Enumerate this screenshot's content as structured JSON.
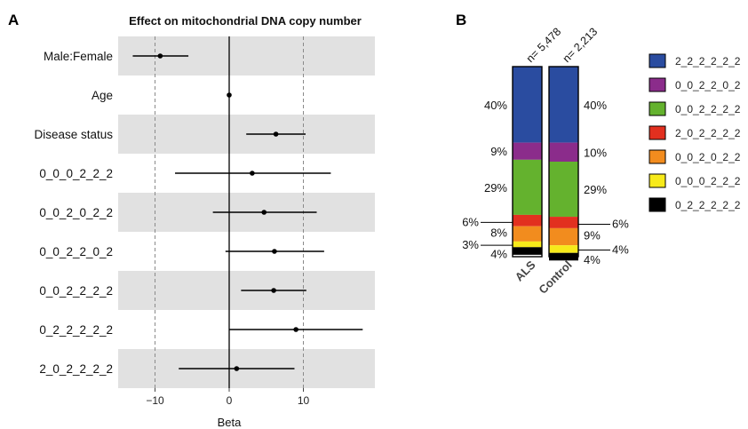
{
  "panel_a": {
    "letter": "A"
  },
  "panel_b": {
    "letter": "B"
  },
  "chart_data": [
    {
      "type": "forest",
      "title": "Effect on mitochondrial DNA copy number",
      "xlabel": "Beta",
      "xlim": [
        -15,
        20
      ],
      "xticks": [
        -10,
        0,
        10
      ],
      "xtick_labels": [
        "−10",
        "0",
        "10"
      ],
      "reference_lines": [
        -10,
        0,
        10
      ],
      "rows": [
        {
          "label": "Male:Female",
          "estimate": -9.3,
          "lower": -13.0,
          "upper": -5.5,
          "shaded": true
        },
        {
          "label": "Age",
          "estimate": 0.0,
          "lower": -0.2,
          "upper": 0.2,
          "shaded": false
        },
        {
          "label": "Disease status",
          "estimate": 6.3,
          "lower": 2.3,
          "upper": 10.3,
          "shaded": true
        },
        {
          "label": "0_0_0_2_2_2",
          "estimate": 3.1,
          "lower": -7.3,
          "upper": 13.7,
          "shaded": false
        },
        {
          "label": "0_0_2_0_2_2",
          "estimate": 4.7,
          "lower": -2.2,
          "upper": 11.8,
          "shaded": true
        },
        {
          "label": "0_0_2_2_0_2",
          "estimate": 6.1,
          "lower": -0.5,
          "upper": 12.8,
          "shaded": false
        },
        {
          "label": "0_0_2_2_2_2",
          "estimate": 6.0,
          "lower": 1.6,
          "upper": 10.4,
          "shaded": true
        },
        {
          "label": "0_2_2_2_2_2",
          "estimate": 9.0,
          "lower": 0.0,
          "upper": 18.0,
          "shaded": false
        },
        {
          "label": "2_0_2_2_2_2",
          "estimate": 1.0,
          "lower": -6.8,
          "upper": 8.8,
          "shaded": true
        }
      ]
    },
    {
      "type": "stacked-bar",
      "categories": [
        "ALS",
        "Control"
      ],
      "n_labels": [
        "n= 5,478",
        "n= 2,213"
      ],
      "ylim": [
        0,
        100
      ],
      "legend_position": "right",
      "series": [
        {
          "name": "2_2_2_2_2_2",
          "color": "#2A4CA0",
          "values": [
            40,
            40
          ],
          "labels": [
            "40%",
            "40%"
          ]
        },
        {
          "name": "0_0_2_2_0_2",
          "color": "#8B2C8B",
          "values": [
            9,
            10
          ],
          "labels": [
            "9%",
            "10%"
          ]
        },
        {
          "name": "0_0_2_2_2_2",
          "color": "#64B22E",
          "values": [
            29,
            29
          ],
          "labels": [
            "29%",
            "29%"
          ]
        },
        {
          "name": "2_0_2_2_2_2",
          "color": "#E2301F",
          "values": [
            6,
            6
          ],
          "labels": [
            "6%",
            "6%"
          ]
        },
        {
          "name": "0_0_2_0_2_2",
          "color": "#F28C1E",
          "values": [
            8,
            9
          ],
          "labels": [
            "8%",
            "9%"
          ]
        },
        {
          "name": "0_0_0_2_2_2",
          "color": "#F7EA1A",
          "values": [
            3,
            4
          ],
          "labels": [
            "3%",
            "4%"
          ]
        },
        {
          "name": "0_2_2_2_2_2",
          "color": "#000000",
          "values": [
            4,
            4
          ],
          "labels": [
            "4%",
            "4%"
          ]
        }
      ]
    }
  ]
}
